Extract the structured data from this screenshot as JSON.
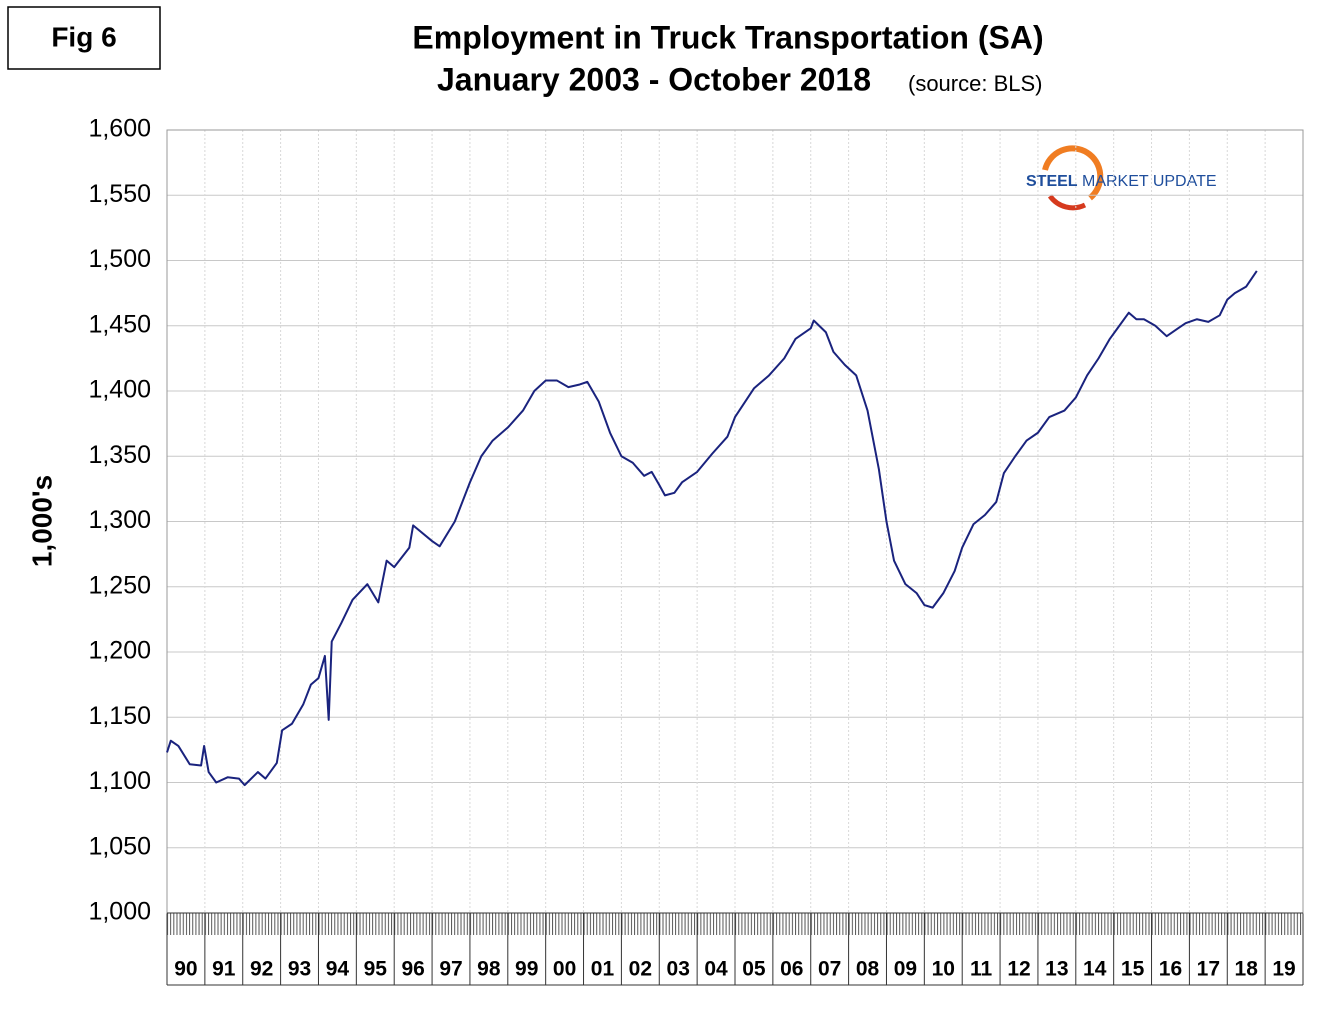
{
  "chart_data": {
    "type": "line",
    "figure_label": "Fig 6",
    "title": "Employment in Truck Transportation (SA)",
    "subtitle": "January 2003 - October 2018",
    "source_note": "(source: BLS)",
    "y_label": "1,000's",
    "logo_text": [
      "STEEL",
      "MARKET UPDATE"
    ],
    "color": "#1a237e",
    "grid": true,
    "xlim": [
      1990,
      2020
    ],
    "ylim": [
      1000,
      1600
    ],
    "yticks": [
      {
        "value": 1000,
        "label": "1,000"
      },
      {
        "value": 1050,
        "label": "1,050"
      },
      {
        "value": 1100,
        "label": "1,100"
      },
      {
        "value": 1150,
        "label": "1,150"
      },
      {
        "value": 1200,
        "label": "1,200"
      },
      {
        "value": 1250,
        "label": "1,250"
      },
      {
        "value": 1300,
        "label": "1,300"
      },
      {
        "value": 1350,
        "label": "1,350"
      },
      {
        "value": 1400,
        "label": "1,400"
      },
      {
        "value": 1450,
        "label": "1,450"
      },
      {
        "value": 1500,
        "label": "1,500"
      },
      {
        "value": 1550,
        "label": "1,550"
      },
      {
        "value": 1600,
        "label": "1,600"
      }
    ],
    "xticks": [
      {
        "value": 1990,
        "label": "90"
      },
      {
        "value": 1991,
        "label": "91"
      },
      {
        "value": 1992,
        "label": "92"
      },
      {
        "value": 1993,
        "label": "93"
      },
      {
        "value": 1994,
        "label": "94"
      },
      {
        "value": 1995,
        "label": "95"
      },
      {
        "value": 1996,
        "label": "96"
      },
      {
        "value": 1997,
        "label": "97"
      },
      {
        "value": 1998,
        "label": "98"
      },
      {
        "value": 1999,
        "label": "99"
      },
      {
        "value": 2000,
        "label": "00"
      },
      {
        "value": 2001,
        "label": "01"
      },
      {
        "value": 2002,
        "label": "02"
      },
      {
        "value": 2003,
        "label": "03"
      },
      {
        "value": 2004,
        "label": "04"
      },
      {
        "value": 2005,
        "label": "05"
      },
      {
        "value": 2006,
        "label": "06"
      },
      {
        "value": 2007,
        "label": "07"
      },
      {
        "value": 2008,
        "label": "08"
      },
      {
        "value": 2009,
        "label": "09"
      },
      {
        "value": 2010,
        "label": "10"
      },
      {
        "value": 2011,
        "label": "11"
      },
      {
        "value": 2012,
        "label": "12"
      },
      {
        "value": 2013,
        "label": "13"
      },
      {
        "value": 2014,
        "label": "14"
      },
      {
        "value": 2015,
        "label": "15"
      },
      {
        "value": 2016,
        "label": "16"
      },
      {
        "value": 2017,
        "label": "17"
      },
      {
        "value": 2018,
        "label": "18"
      },
      {
        "value": 2019,
        "label": "19"
      }
    ],
    "x": [
      1990.0,
      1990.1,
      1990.3,
      1990.6,
      1990.9,
      1990.98,
      1991.1,
      1991.3,
      1991.6,
      1991.9,
      1992.05,
      1992.4,
      1992.6,
      1992.9,
      1993.04,
      1993.3,
      1993.6,
      1993.8,
      1994.0,
      1994.17,
      1994.27,
      1994.35,
      1994.6,
      1994.9,
      1995.29,
      1995.58,
      1995.8,
      1996.0,
      1996.4,
      1996.5,
      1997.0,
      1997.2,
      1997.6,
      1998.0,
      1998.3,
      1998.6,
      1999.0,
      1999.4,
      1999.7,
      2000.0,
      2000.3,
      2000.6,
      2000.9,
      2001.1,
      2001.4,
      2001.7,
      2002.0,
      2002.3,
      2002.6,
      2002.8,
      2003.0,
      2003.15,
      2003.4,
      2003.6,
      2004.0,
      2004.4,
      2004.8,
      2005.0,
      2005.5,
      2005.9,
      2006.3,
      2006.6,
      2007.0,
      2007.08,
      2007.4,
      2007.6,
      2007.9,
      2008.2,
      2008.5,
      2008.8,
      2009.0,
      2009.2,
      2009.5,
      2009.8,
      2010.0,
      2010.22,
      2010.5,
      2010.8,
      2011.0,
      2011.3,
      2011.6,
      2011.9,
      2012.1,
      2012.4,
      2012.7,
      2013.0,
      2013.3,
      2013.7,
      2014.0,
      2014.3,
      2014.6,
      2014.9,
      2015.1,
      2015.4,
      2015.6,
      2015.8,
      2016.1,
      2016.4,
      2016.7,
      2016.9,
      2017.2,
      2017.5,
      2017.8,
      2018.0,
      2018.2,
      2018.5,
      2018.78
    ],
    "values": [
      1123,
      1132,
      1128,
      1114,
      1113,
      1128,
      1108,
      1100,
      1104,
      1103,
      1098,
      1108,
      1103,
      1115,
      1140,
      1145,
      1160,
      1175,
      1180,
      1197,
      1148,
      1208,
      1222,
      1240,
      1252,
      1238,
      1270,
      1265,
      1280,
      1297,
      1285,
      1281,
      1300,
      1330,
      1350,
      1362,
      1372,
      1385,
      1400,
      1408,
      1408,
      1403,
      1405,
      1407,
      1392,
      1368,
      1350,
      1345,
      1335,
      1338,
      1328,
      1320,
      1322,
      1330,
      1338,
      1352,
      1365,
      1380,
      1402,
      1412,
      1425,
      1440,
      1448,
      1454,
      1445,
      1430,
      1420,
      1412,
      1385,
      1340,
      1300,
      1270,
      1252,
      1245,
      1236,
      1234,
      1245,
      1262,
      1280,
      1298,
      1305,
      1315,
      1337,
      1350,
      1362,
      1368,
      1380,
      1385,
      1395,
      1412,
      1425,
      1440,
      1448,
      1460,
      1455,
      1455,
      1450,
      1442,
      1448,
      1452,
      1455,
      1453,
      1458,
      1470,
      1475,
      1480,
      1492
    ]
  }
}
